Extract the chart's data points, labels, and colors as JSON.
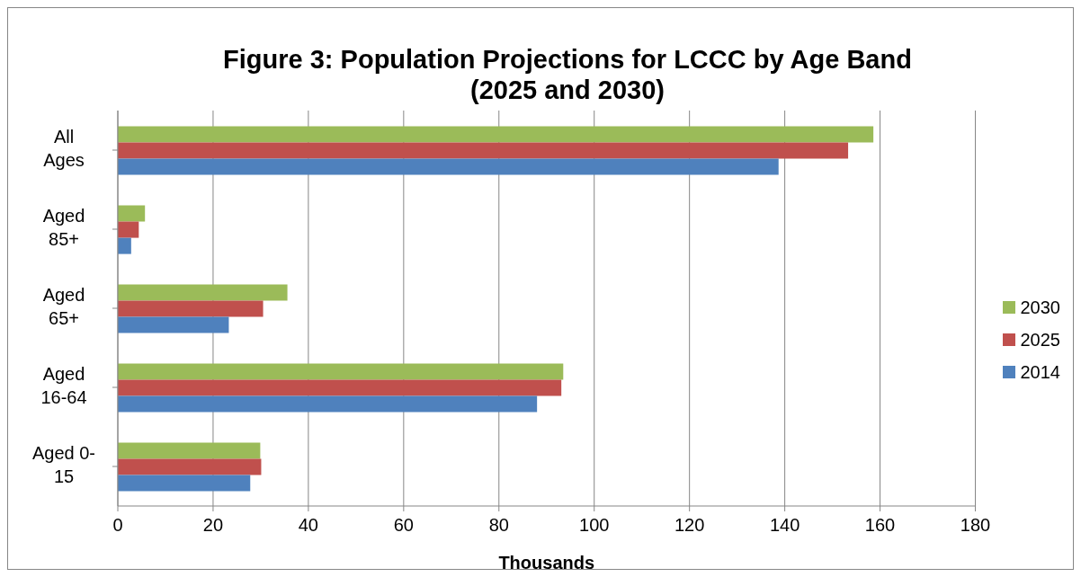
{
  "chart_data": {
    "type": "bar",
    "orientation": "horizontal",
    "title": "Figure 3:  Population Projections for LCCC by Age Band\n(2025 and 2030)",
    "xlabel": "Thousands",
    "categories": [
      "All Ages",
      "Aged 85+",
      "Aged 65+",
      "Aged 16-64",
      "Aged 0-15"
    ],
    "series": [
      {
        "name": "2030",
        "color": "#9bbb59",
        "values": [
          158.6,
          5.7,
          35.6,
          93.5,
          29.9
        ]
      },
      {
        "name": "2025",
        "color": "#c0504d",
        "values": [
          153.3,
          4.4,
          30.5,
          93.1,
          30.1
        ]
      },
      {
        "name": "2014",
        "color": "#4f81bd",
        "values": [
          138.7,
          2.8,
          23.3,
          88.0,
          27.8
        ]
      }
    ],
    "xlim": [
      0,
      180
    ],
    "xticks": [
      0,
      20,
      40,
      60,
      80,
      100,
      120,
      140,
      160,
      180
    ],
    "grid": "x",
    "legend": "right"
  }
}
